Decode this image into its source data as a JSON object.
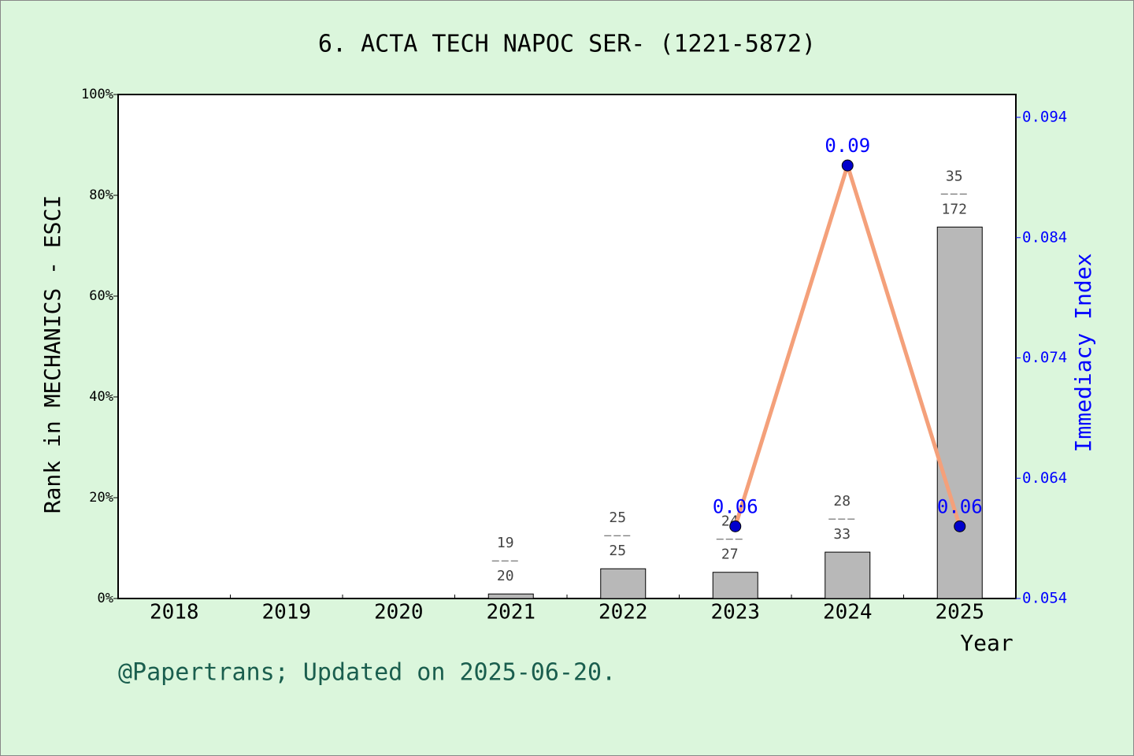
{
  "chart_data": {
    "type": "bar",
    "title": "6. ACTA TECH NAPOC SER- (1221-5872)",
    "x_label": "Year",
    "y_label": "Rank in MECHANICS - ESCI",
    "y2_label": "Immediacy Index",
    "footer": "@Papertrans; Updated on 2025-06-20.",
    "categories": [
      "2018",
      "2019",
      "2020",
      "2021",
      "2022",
      "2023",
      "2024",
      "2025"
    ],
    "series": [
      {
        "name": "Rank",
        "type": "bar",
        "color": "#b8b8b8",
        "values": [
          null,
          null,
          null,
          0.9,
          5.9,
          5.2,
          9.2,
          73.7
        ],
        "ranks": [
          null,
          null,
          null,
          19,
          25,
          24,
          28,
          35
        ],
        "totals": [
          null,
          null,
          null,
          20,
          25,
          27,
          33,
          172
        ]
      },
      {
        "name": "Immediacy Index",
        "type": "line",
        "axis": "y2",
        "color": "#f4a07a",
        "marker_color": "#0000cc",
        "values": [
          null,
          null,
          null,
          null,
          null,
          0.06,
          0.09,
          0.06
        ]
      }
    ],
    "ylim": [
      0,
      100
    ],
    "yticks": [
      {
        "value": 0,
        "label": "0%"
      },
      {
        "value": 20,
        "label": "20%"
      },
      {
        "value": 40,
        "label": "40%"
      },
      {
        "value": 60,
        "label": "60%"
      },
      {
        "value": 80,
        "label": "80%"
      },
      {
        "value": 100,
        "label": "100%"
      }
    ],
    "y2lim": [
      0.054,
      0.0959
    ],
    "y2ticks": [
      0.054,
      0.064,
      0.074,
      0.084,
      0.094
    ]
  }
}
